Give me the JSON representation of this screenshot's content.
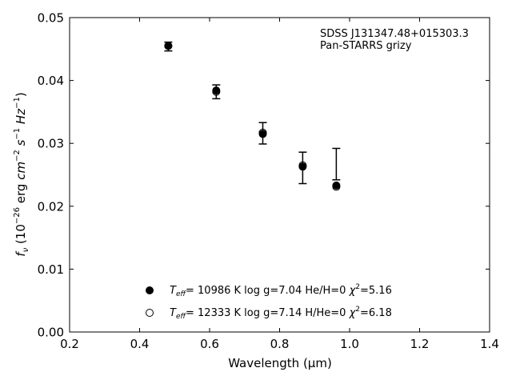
{
  "chart_data": {
    "type": "scatter",
    "xlabel": "Wavelength (μm)",
    "ylabel": "f_ν (10^-26 erg cm^-2 s^-1 Hz^-1)",
    "xlim": [
      0.2,
      1.4
    ],
    "ylim": [
      0.0,
      0.05
    ],
    "xticks": [
      0.2,
      0.4,
      0.6,
      0.8,
      1.0,
      1.2,
      1.4
    ],
    "xtick_labels": [
      "0.2",
      "0.4",
      "0.6",
      "0.8",
      "1.0",
      "1.2",
      "1.4"
    ],
    "yticks": [
      0.0,
      0.01,
      0.02,
      0.03,
      0.04,
      0.05
    ],
    "ytick_labels": [
      "0.00",
      "0.01",
      "0.02",
      "0.03",
      "0.04",
      "0.05"
    ],
    "grid": false,
    "annotation": [
      "SDSS J131347.48+015303.3",
      "Pan-STARRS grizy"
    ],
    "observed": {
      "x": [
        0.482,
        0.619,
        0.752,
        0.866,
        0.962
      ],
      "y": [
        0.0454,
        0.0382,
        0.0316,
        0.0261,
        0.0267
      ],
      "yerr": [
        0.0007,
        0.0011,
        0.0017,
        0.0025,
        0.0025
      ]
    },
    "series": [
      {
        "marker": "filled-circle",
        "legend_label": "T_eff= 10986 K  log g=7.04  He/H=0  χ²=5.16",
        "x": [
          0.482,
          0.619,
          0.752,
          0.866,
          0.962
        ],
        "y": [
          0.0455,
          0.0384,
          0.0315,
          0.0263,
          0.0233
        ]
      },
      {
        "marker": "open-circle",
        "legend_label": "T_eff= 12333 K  log g=7.14  H/He=0  χ²=6.18",
        "x": [
          0.482,
          0.619,
          0.752,
          0.866,
          0.962
        ],
        "y": [
          0.0455,
          0.0382,
          0.0317,
          0.0265,
          0.0231
        ]
      }
    ]
  }
}
